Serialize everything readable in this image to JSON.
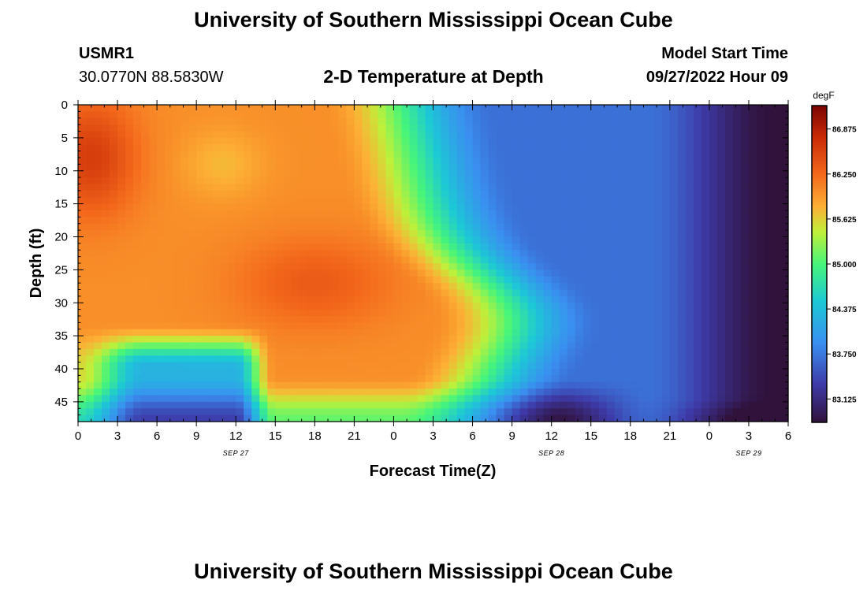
{
  "title": "University of Southern Mississippi Ocean Cube",
  "footer_title": "University of Southern Mississippi Ocean Cube",
  "station": {
    "name": "USMR1",
    "coords": "30.0770N  88.5830W"
  },
  "plot_title": "2-D Temperature at Depth",
  "model_start": {
    "label": "Model Start Time",
    "value": "09/27/2022 Hour 09"
  },
  "chart_data": {
    "type": "heatmap",
    "title": "2-D Temperature at Depth",
    "xlabel": "Forecast Time(Z)",
    "ylabel": "Depth (ft)",
    "x_range_hours": [
      0,
      54
    ],
    "y_range_ft": [
      0,
      48
    ],
    "x_tick_labels": [
      "0",
      "3",
      "6",
      "9",
      "12",
      "15",
      "18",
      "21",
      "0",
      "3",
      "6",
      "9",
      "12",
      "15",
      "18",
      "21",
      "0",
      "3",
      "6"
    ],
    "y_tick_labels": [
      "0",
      "5",
      "10",
      "15",
      "20",
      "25",
      "30",
      "35",
      "40",
      "45"
    ],
    "date_labels": [
      {
        "hour": 12,
        "label": "SEP 27"
      },
      {
        "hour": 36,
        "label": "SEP 28"
      },
      {
        "hour": 51,
        "label": "SEP 29"
      }
    ],
    "colorbar": {
      "unit": "degF",
      "min": 82.8,
      "max": 87.2,
      "ticks": [
        "86.875",
        "86.250",
        "85.625",
        "85.000",
        "84.375",
        "83.750",
        "83.125"
      ]
    }
  }
}
